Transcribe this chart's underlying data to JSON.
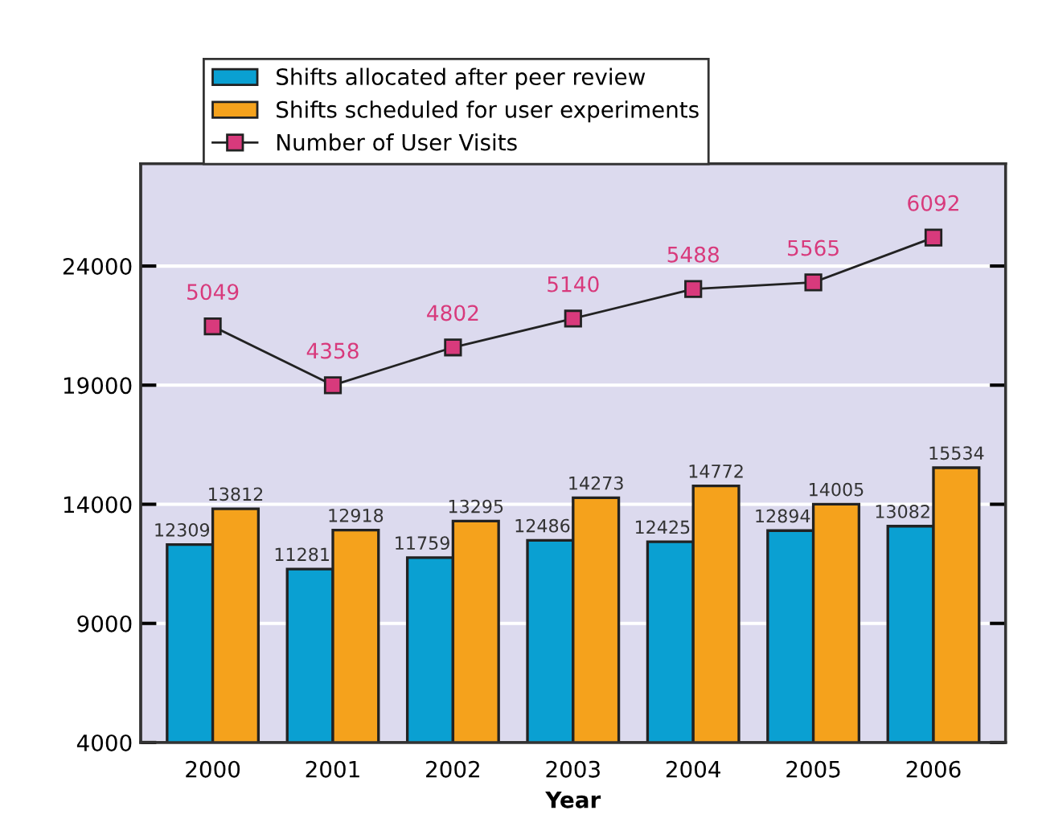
{
  "chart_data": {
    "type": "bar",
    "xlabel": "Year",
    "categories": [
      "2000",
      "2001",
      "2002",
      "2003",
      "2004",
      "2005",
      "2006"
    ],
    "series": [
      {
        "name": "Shifts allocated after peer review",
        "color": "#0aa0d2",
        "values": [
          12309,
          11281,
          11759,
          12486,
          12425,
          12894,
          13082
        ]
      },
      {
        "name": "Shifts scheduled for user experiments",
        "color": "#f5a21c",
        "values": [
          13812,
          12918,
          13295,
          14273,
          14772,
          14005,
          15534
        ]
      },
      {
        "name": "Number of User Visits",
        "type": "line",
        "axis": "y2",
        "color": "#d83a7c",
        "marker": "square",
        "line_style": "solid",
        "values": [
          5049,
          4358,
          4802,
          5140,
          5488,
          5565,
          6092
        ]
      }
    ],
    "ylim": [
      4000,
      28300
    ],
    "yticks": [
      4000,
      9000,
      14000,
      19000,
      24000
    ],
    "y2lim": [
      163,
      6960
    ],
    "grid": "y",
    "legend": "top left",
    "data_labels": true
  }
}
